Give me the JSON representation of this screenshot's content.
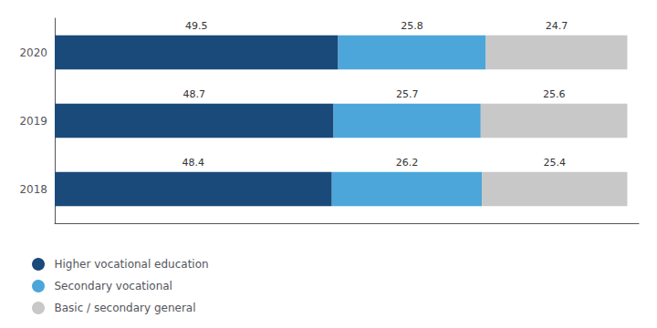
{
  "chart_data": {
    "type": "bar",
    "orientation": "horizontal",
    "stacked": true,
    "categories": [
      "2020",
      "2019",
      "2018"
    ],
    "series": [
      {
        "name": "Higher vocational education",
        "color": "#1a4a7a",
        "values": [
          49.5,
          48.7,
          48.4
        ]
      },
      {
        "name": "Secondary vocational",
        "color": "#4da6d9",
        "values": [
          25.8,
          25.7,
          26.2
        ]
      },
      {
        "name": "Basic / secondary general",
        "color": "#c8c8c8",
        "values": [
          24.7,
          25.6,
          25.4
        ]
      }
    ],
    "xlim": [
      0,
      102
    ],
    "tick_labels": "y",
    "data_labels": true,
    "grid": false,
    "legend": "lower left"
  }
}
